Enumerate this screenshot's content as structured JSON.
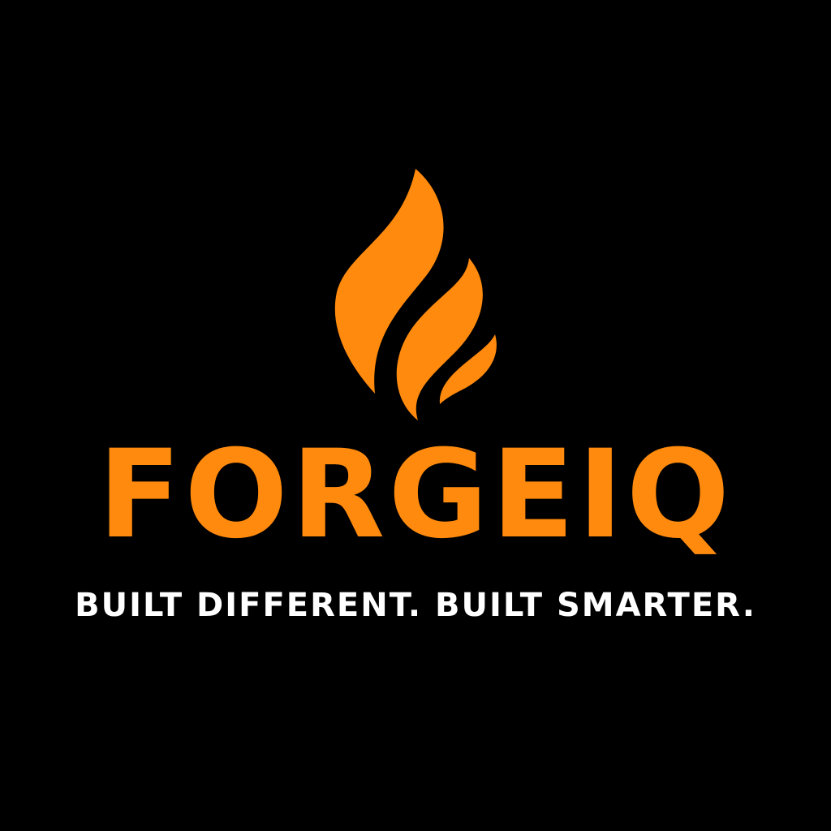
{
  "logo": {
    "icon": "flame-icon",
    "brand_name": "FORGEIQ",
    "tagline": "BUILT DIFFERENT. BUILT SMARTER."
  },
  "colors": {
    "background": "#000000",
    "accent": "#FF8A0D",
    "tagline": "#FFFFFF"
  }
}
